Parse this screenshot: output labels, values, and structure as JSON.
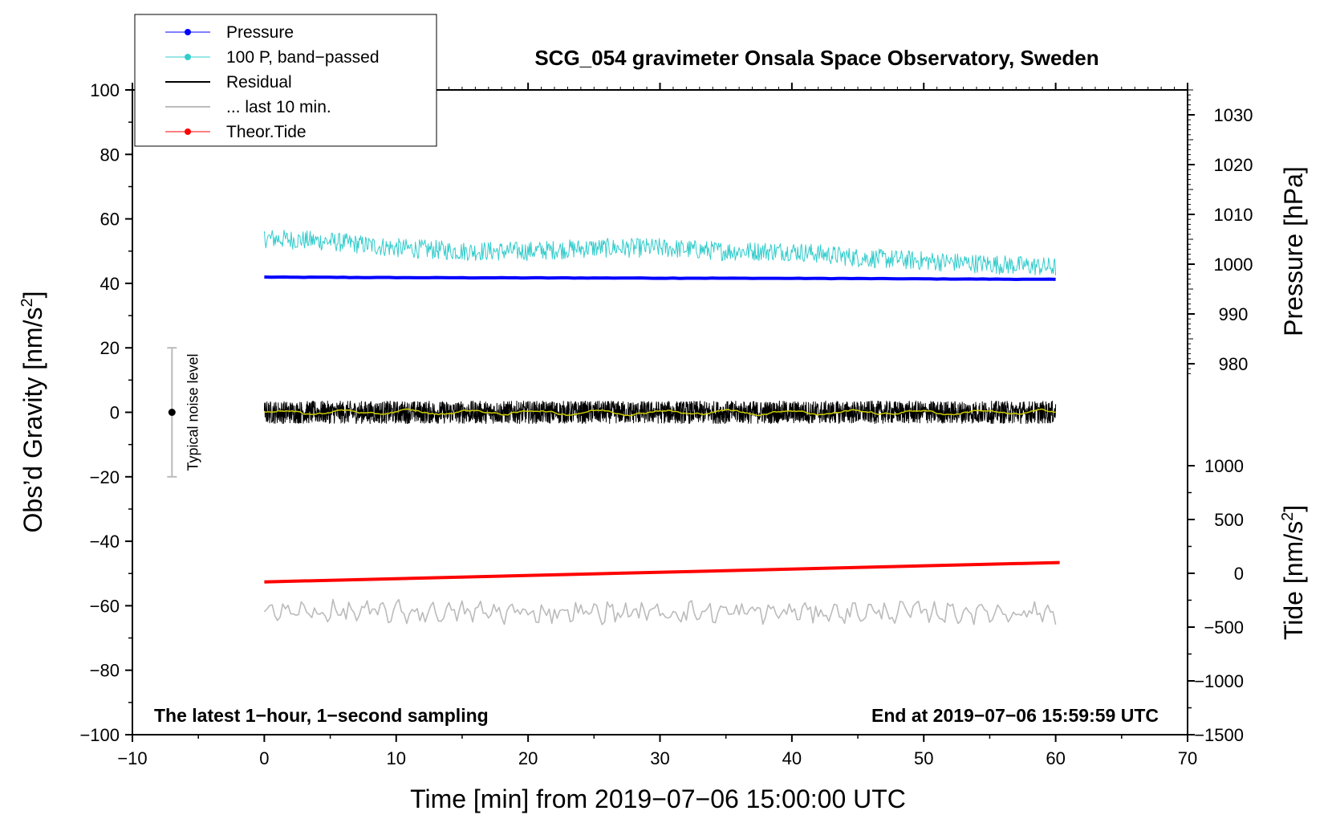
{
  "chart_data": {
    "type": "line",
    "title": "SCG_054 gravimeter Onsala Space Observatory, Sweden",
    "xlabel": "Time [min] from 2019−07−06 15:00:00 UTC",
    "ylabel_left": "Obs’d Gravity [nm/s",
    "ylabel_left_sup": "2",
    "ylabel_left_close": "]",
    "ylabel_pressure": "Pressure [hPa]",
    "ylabel_tide": "Tide [nm/s",
    "ylabel_tide_sup": "2",
    "ylabel_tide_close": "]",
    "xlim": [
      -10,
      70
    ],
    "ylim_left": [
      -100,
      100
    ],
    "ylim_pressure": [
      975,
      1035
    ],
    "ylim_tide": [
      -1500,
      1000
    ],
    "x_ticks": [
      -10,
      0,
      10,
      20,
      30,
      40,
      50,
      60,
      70
    ],
    "x_tick_labels": [
      "−10",
      "0",
      "10",
      "20",
      "30",
      "40",
      "50",
      "60",
      "70"
    ],
    "y_ticks_left": [
      -100,
      -80,
      -60,
      -40,
      -20,
      0,
      20,
      40,
      60,
      80,
      100
    ],
    "y_tick_labels_left": [
      "−100",
      "−80",
      "−60",
      "−40",
      "−20",
      "0",
      "20",
      "40",
      "60",
      "80",
      "100"
    ],
    "y_ticks_pressure": [
      980,
      990,
      1000,
      1010,
      1020,
      1030
    ],
    "y_tick_labels_pressure": [
      "980",
      "990",
      "1000",
      "1010",
      "1020",
      "1030"
    ],
    "y_ticks_tide": [
      -1500,
      -1000,
      -500,
      0,
      500,
      1000
    ],
    "y_tick_labels_tide": [
      "−1500",
      "−1000",
      "−500",
      "0",
      "500",
      "1000"
    ],
    "annotation_left": "The latest 1−hour, 1−second sampling",
    "annotation_right": "End at 2019−07−06 15:59:59 UTC",
    "noise_bar": {
      "x": -7,
      "center": 0,
      "low": -20,
      "high": 20,
      "label": "Typical noise level"
    },
    "legend": {
      "placement": "top-left",
      "entries": [
        {
          "label": "Pressure",
          "color": "#0000ff",
          "marker": true
        },
        {
          "label": "100 P, band−passed",
          "color": "#33cccc",
          "marker": true
        },
        {
          "label": "Residual",
          "color": "#000000",
          "marker": false
        },
        {
          "label": "... last 10 min.",
          "color": "#bbbbbb",
          "marker": false
        },
        {
          "label": "Theor.Tide",
          "color": "#ff0000",
          "marker": true
        }
      ]
    },
    "series": [
      {
        "name": "Pressure",
        "axis": "pressure",
        "color": "#0000ff",
        "x": [
          0,
          10,
          20,
          30,
          40,
          50,
          60
        ],
        "values": [
          997.4,
          997.3,
          997.25,
          997.2,
          997.15,
          997.05,
          996.95
        ]
      },
      {
        "name": "100 P, band−passed",
        "axis": "left",
        "color": "#33cccc",
        "x": [
          0,
          5,
          10,
          15,
          20,
          25,
          30,
          35,
          40,
          45,
          50,
          55,
          60
        ],
        "values": [
          54,
          53,
          51,
          50,
          50,
          51,
          51,
          50,
          50,
          48,
          47,
          46,
          45
        ],
        "noise_amplitude": 3
      },
      {
        "name": "Residual",
        "axis": "left",
        "color": "#000000",
        "x": [
          0,
          60
        ],
        "values": [
          0,
          0
        ],
        "noise_amplitude": 3.5
      },
      {
        "name": "Residual (smoothed)",
        "axis": "left",
        "color": "#cccc00",
        "x": [
          0,
          60
        ],
        "values": [
          0,
          0
        ],
        "noise_amplitude": 0.8
      },
      {
        "name": "... last 10 min.",
        "axis": "left",
        "color": "#bbbbbb",
        "x": [
          0,
          60
        ],
        "values": [
          -62,
          -62
        ],
        "noise_amplitude": 2.5
      },
      {
        "name": "Theor.Tide",
        "axis": "tide",
        "color": "#ff0000",
        "x": [
          0,
          60
        ],
        "values": [
          -80,
          100
        ]
      }
    ]
  }
}
